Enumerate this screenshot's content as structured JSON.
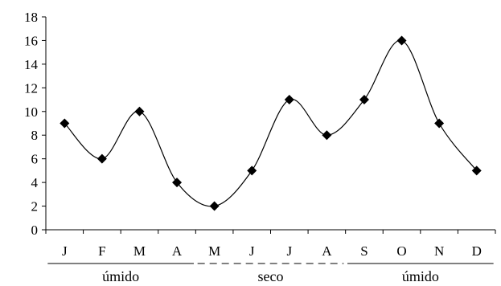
{
  "chart_data": {
    "type": "line",
    "categories": [
      "J",
      "F",
      "M",
      "A",
      "M",
      "J",
      "J",
      "A",
      "S",
      "O",
      "N",
      "D"
    ],
    "series": [
      {
        "values": [
          9,
          6,
          10,
          4,
          2,
          5,
          11,
          8,
          11,
          16,
          9,
          5
        ],
        "marker": "diamond",
        "smooth": true
      }
    ],
    "ylim": [
      0,
      18
    ],
    "yticks": [
      0,
      2,
      4,
      6,
      8,
      10,
      12,
      14,
      16,
      18
    ],
    "grid": false,
    "legend": "none",
    "seasons": [
      {
        "label": "úmido",
        "from": 0,
        "to": 3,
        "line": "solid"
      },
      {
        "label": "seco",
        "from": 4,
        "to": 7,
        "line": "dashed"
      },
      {
        "label": "úmido",
        "from": 8,
        "to": 11,
        "line": "solid"
      }
    ],
    "colors": {
      "line": "#000000",
      "marker": "#000000",
      "axis": "#000000"
    }
  }
}
